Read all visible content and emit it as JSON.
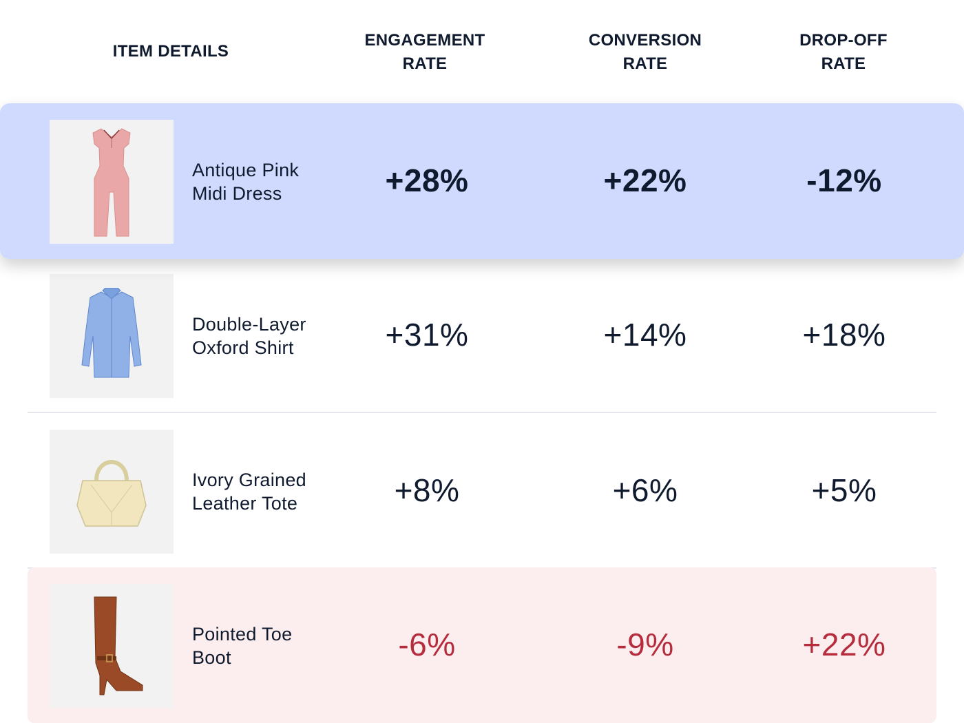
{
  "header": {
    "item_details": "ITEM DETAILS",
    "engagement_rate": "ENGAGEMENT\nRATE",
    "conversion_rate": "CONVERSION\nRATE",
    "dropoff_rate": "DROP-OFF\nRATE"
  },
  "rows": [
    {
      "name": "Antique Pink\nMidi Dress",
      "image": "pink-dress-icon",
      "engagement": "+28%",
      "conversion": "+22%",
      "dropoff": "-12%",
      "highlight": true
    },
    {
      "name": "Double-Layer\nOxford Shirt",
      "image": "blue-shirt-icon",
      "engagement": "+31%",
      "conversion": "+14%",
      "dropoff": "+18%"
    },
    {
      "name": "Ivory Grained\nLeather Tote",
      "image": "ivory-tote-icon",
      "engagement": "+8%",
      "conversion": "+6%",
      "dropoff": "+5%"
    },
    {
      "name": "Pointed Toe\nBoot",
      "image": "brown-boot-icon",
      "engagement": "-6%",
      "conversion": "-9%",
      "dropoff": "+22%",
      "negative": true
    }
  ],
  "colors": {
    "highlight_bg": "#cfdafe",
    "negative_bg": "#fcedee",
    "negative_text": "#b52d3d",
    "text": "#0f1a2e"
  }
}
